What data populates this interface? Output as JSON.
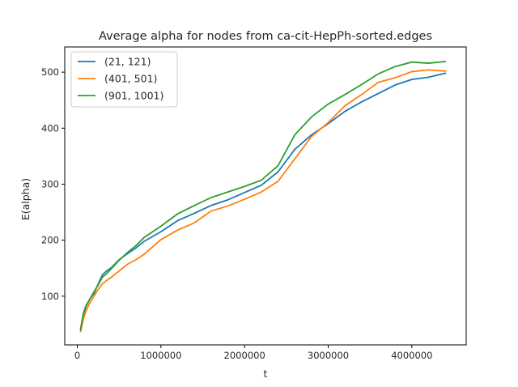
{
  "chart_data": {
    "type": "line",
    "title": "Average alpha for nodes from ca-cit-HepPh-sorted.edges",
    "xlabel": "t",
    "ylabel": "E(alpha)",
    "xlim": [
      -150000,
      4650000
    ],
    "ylim": [
      13,
      545
    ],
    "xticks": [
      0,
      1000000,
      2000000,
      3000000,
      4000000
    ],
    "xtick_labels": [
      "0",
      "1000000",
      "2000000",
      "3000000",
      "4000000"
    ],
    "yticks": [
      100,
      200,
      300,
      400,
      500
    ],
    "ytick_labels": [
      "100",
      "200",
      "300",
      "400",
      "500"
    ],
    "grid": false,
    "legend_position": "top-left",
    "series": [
      {
        "name": "(21, 121)",
        "color": "#1f77b4",
        "x": [
          40000,
          70000,
          100000,
          150000,
          200000,
          250000,
          300000,
          350000,
          400000,
          500000,
          600000,
          700000,
          800000,
          1000000,
          1200000,
          1400000,
          1600000,
          1800000,
          2000000,
          2200000,
          2400000,
          2600000,
          2800000,
          3000000,
          3200000,
          3400000,
          3600000,
          3800000,
          4000000,
          4200000,
          4400000
        ],
        "y": [
          42,
          65,
          80,
          95,
          105,
          122,
          138,
          145,
          150,
          165,
          176,
          186,
          198,
          215,
          235,
          248,
          262,
          272,
          285,
          298,
          322,
          362,
          388,
          408,
          430,
          447,
          462,
          477,
          487,
          491,
          498
        ]
      },
      {
        "name": "(401, 501)",
        "color": "#ff7f0e",
        "x": [
          40000,
          70000,
          100000,
          150000,
          200000,
          250000,
          300000,
          350000,
          400000,
          500000,
          600000,
          700000,
          800000,
          1000000,
          1200000,
          1400000,
          1600000,
          1800000,
          2000000,
          2200000,
          2400000,
          2600000,
          2800000,
          3000000,
          3200000,
          3400000,
          3600000,
          3800000,
          4000000,
          4200000,
          4400000
        ],
        "y": [
          37,
          58,
          72,
          88,
          100,
          112,
          122,
          128,
          133,
          145,
          157,
          165,
          175,
          201,
          218,
          231,
          252,
          261,
          273,
          286,
          305,
          345,
          385,
          410,
          440,
          460,
          482,
          490,
          501,
          504,
          502
        ]
      },
      {
        "name": "(901, 1001)",
        "color": "#2ca02c",
        "x": [
          40000,
          70000,
          100000,
          150000,
          200000,
          250000,
          300000,
          350000,
          400000,
          500000,
          600000,
          700000,
          800000,
          1000000,
          1200000,
          1400000,
          1600000,
          1800000,
          2000000,
          2200000,
          2400000,
          2600000,
          2800000,
          3000000,
          3200000,
          3400000,
          3600000,
          3800000,
          4000000,
          4200000,
          4400000
        ],
        "y": [
          40,
          68,
          82,
          95,
          108,
          120,
          134,
          140,
          148,
          164,
          178,
          190,
          205,
          225,
          247,
          262,
          276,
          286,
          296,
          307,
          333,
          388,
          420,
          443,
          460,
          478,
          497,
          510,
          518,
          516,
          519
        ]
      }
    ]
  }
}
